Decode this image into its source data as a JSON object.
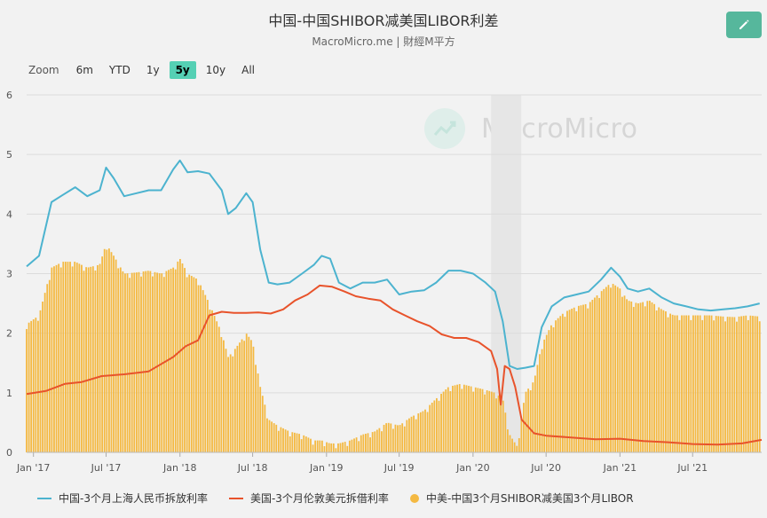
{
  "header": {
    "title": "中国-中国SHIBOR减美国LIBOR利差",
    "subtitle": "MacroMicro.me | 財經M平方",
    "edit_icon": "pencil-icon"
  },
  "watermark": "MacroMicro",
  "zoom": {
    "label": "Zoom",
    "options": [
      "6m",
      "YTD",
      "1y",
      "5y",
      "10y",
      "All"
    ],
    "selected": "5y"
  },
  "legend": [
    {
      "label": "中国-3个月上海人民币拆放利率",
      "color": "#4cb3cf",
      "type": "line"
    },
    {
      "label": "美国-3个月伦敦美元拆借利率",
      "color": "#e8532b",
      "type": "line"
    },
    {
      "label": "中美-中国3个月SHIBOR减美国3个月LIBOR",
      "color": "#f4b942",
      "type": "column"
    }
  ],
  "chart_data": {
    "type": "line",
    "x_tick_labels": [
      "Jan '17",
      "Jul '17",
      "Jan '18",
      "Jul '18",
      "Jan '19",
      "Jul '19",
      "Jan '20",
      "Jul '20",
      "Jan '21",
      "Jul '21"
    ],
    "y_tick_labels": [
      "0",
      "1",
      "2",
      "3",
      "4",
      "5",
      "6"
    ],
    "ylim": [
      0,
      6
    ],
    "xlim": [
      "2016-12-15",
      "2021-12-20"
    ],
    "shaded_band": {
      "from": "2020-02-15",
      "to": "2020-04-30",
      "color": "#e6e6e6"
    },
    "grid": true,
    "series": [
      {
        "name": "中国-3个月上海人民币拆放利率",
        "type": "line",
        "color": "#4cb3cf",
        "x": [
          "2016-12-15",
          "2017-01-15",
          "2017-02-15",
          "2017-03-15",
          "2017-04-15",
          "2017-05-15",
          "2017-06-15",
          "2017-07-01",
          "2017-07-20",
          "2017-08-15",
          "2017-09-15",
          "2017-10-15",
          "2017-11-15",
          "2017-12-15",
          "2018-01-01",
          "2018-01-20",
          "2018-02-15",
          "2018-03-15",
          "2018-04-15",
          "2018-05-01",
          "2018-05-20",
          "2018-06-15",
          "2018-07-01",
          "2018-07-20",
          "2018-08-10",
          "2018-09-01",
          "2018-10-01",
          "2018-11-01",
          "2018-12-01",
          "2018-12-20",
          "2019-01-10",
          "2019-02-01",
          "2019-03-01",
          "2019-04-01",
          "2019-05-01",
          "2019-06-01",
          "2019-07-01",
          "2019-08-01",
          "2019-09-01",
          "2019-10-01",
          "2019-11-01",
          "2019-12-01",
          "2020-01-01",
          "2020-02-01",
          "2020-02-25",
          "2020-03-15",
          "2020-04-01",
          "2020-04-20",
          "2020-05-10",
          "2020-06-01",
          "2020-06-20",
          "2020-07-15",
          "2020-08-15",
          "2020-09-15",
          "2020-10-15",
          "2020-11-15",
          "2020-12-10",
          "2021-01-01",
          "2021-01-20",
          "2021-02-15",
          "2021-03-15",
          "2021-04-15",
          "2021-05-15",
          "2021-06-15",
          "2021-07-15",
          "2021-08-15",
          "2021-09-15",
          "2021-10-15",
          "2021-11-15",
          "2021-12-15"
        ],
        "y": [
          3.12,
          3.3,
          4.2,
          4.32,
          4.45,
          4.3,
          4.4,
          4.78,
          4.6,
          4.3,
          4.35,
          4.4,
          4.4,
          4.75,
          4.9,
          4.7,
          4.72,
          4.68,
          4.4,
          4.0,
          4.1,
          4.35,
          4.2,
          3.4,
          2.85,
          2.82,
          2.85,
          3.0,
          3.15,
          3.3,
          3.25,
          2.85,
          2.75,
          2.85,
          2.85,
          2.9,
          2.65,
          2.7,
          2.72,
          2.85,
          3.05,
          3.05,
          3.0,
          2.85,
          2.7,
          2.2,
          1.45,
          1.4,
          1.42,
          1.45,
          2.1,
          2.45,
          2.6,
          2.65,
          2.7,
          2.9,
          3.1,
          2.95,
          2.75,
          2.7,
          2.75,
          2.6,
          2.5,
          2.45,
          2.4,
          2.38,
          2.4,
          2.42,
          2.45,
          2.5
        ]
      },
      {
        "name": "美国-3个月伦敦美元拆借利率",
        "type": "line",
        "color": "#e8532b",
        "x": [
          "2016-12-15",
          "2017-02-01",
          "2017-03-20",
          "2017-05-01",
          "2017-06-20",
          "2017-08-15",
          "2017-10-15",
          "2017-12-15",
          "2018-01-15",
          "2018-02-15",
          "2018-03-15",
          "2018-04-15",
          "2018-05-15",
          "2018-06-15",
          "2018-07-15",
          "2018-08-15",
          "2018-09-15",
          "2018-10-15",
          "2018-11-15",
          "2018-12-15",
          "2019-01-15",
          "2019-02-15",
          "2019-03-15",
          "2019-04-15",
          "2019-05-15",
          "2019-06-15",
          "2019-07-15",
          "2019-08-15",
          "2019-09-15",
          "2019-10-15",
          "2019-11-15",
          "2019-12-15",
          "2020-01-15",
          "2020-02-15",
          "2020-03-01",
          "2020-03-10",
          "2020-03-20",
          "2020-04-01",
          "2020-04-15",
          "2020-05-01",
          "2020-06-01",
          "2020-07-01",
          "2020-09-01",
          "2020-11-01",
          "2021-01-01",
          "2021-03-01",
          "2021-05-01",
          "2021-07-01",
          "2021-09-01",
          "2021-11-01",
          "2021-12-20"
        ],
        "y": [
          0.98,
          1.03,
          1.15,
          1.18,
          1.28,
          1.31,
          1.36,
          1.6,
          1.78,
          1.88,
          2.3,
          2.36,
          2.34,
          2.34,
          2.35,
          2.33,
          2.4,
          2.55,
          2.65,
          2.8,
          2.78,
          2.7,
          2.62,
          2.58,
          2.55,
          2.4,
          2.3,
          2.2,
          2.12,
          1.98,
          1.92,
          1.92,
          1.85,
          1.7,
          1.4,
          0.8,
          1.45,
          1.4,
          1.1,
          0.55,
          0.32,
          0.28,
          0.25,
          0.22,
          0.23,
          0.19,
          0.17,
          0.14,
          0.13,
          0.15,
          0.21
        ]
      },
      {
        "name": "中美-中国3个月SHIBOR减美国3个月LIBOR",
        "type": "column",
        "color": "#f4b942",
        "x": [
          "2016-12-15",
          "2017-01-15",
          "2017-02-15",
          "2017-03-15",
          "2017-04-15",
          "2017-05-15",
          "2017-06-15",
          "2017-07-01",
          "2017-07-20",
          "2017-08-15",
          "2017-09-15",
          "2017-10-15",
          "2017-11-15",
          "2017-12-15",
          "2018-01-01",
          "2018-01-20",
          "2018-02-15",
          "2018-03-15",
          "2018-04-15",
          "2018-05-01",
          "2018-05-20",
          "2018-06-15",
          "2018-07-01",
          "2018-07-20",
          "2018-08-10",
          "2018-09-01",
          "2018-10-01",
          "2018-11-01",
          "2018-12-01",
          "2018-12-20",
          "2019-01-10",
          "2019-02-01",
          "2019-03-01",
          "2019-04-01",
          "2019-05-01",
          "2019-06-01",
          "2019-07-01",
          "2019-08-01",
          "2019-09-01",
          "2019-10-01",
          "2019-11-01",
          "2019-12-01",
          "2020-01-01",
          "2020-02-01",
          "2020-02-25",
          "2020-03-15",
          "2020-04-01",
          "2020-04-20",
          "2020-05-10",
          "2020-06-01",
          "2020-06-20",
          "2020-07-15",
          "2020-08-15",
          "2020-09-15",
          "2020-10-15",
          "2020-11-15",
          "2020-12-10",
          "2021-01-01",
          "2021-01-20",
          "2021-02-15",
          "2021-03-15",
          "2021-04-15",
          "2021-05-15",
          "2021-06-15",
          "2021-07-15",
          "2021-08-15",
          "2021-09-15",
          "2021-10-15",
          "2021-11-15",
          "2021-12-15"
        ],
        "y": [
          2.15,
          2.3,
          3.1,
          3.2,
          3.2,
          3.1,
          3.15,
          3.5,
          3.3,
          3.0,
          3.02,
          3.05,
          3.0,
          3.1,
          3.25,
          3.0,
          2.9,
          2.5,
          2.0,
          1.6,
          1.75,
          2.0,
          1.85,
          1.1,
          0.55,
          0.45,
          0.35,
          0.3,
          0.2,
          0.2,
          0.15,
          0.15,
          0.2,
          0.3,
          0.35,
          0.5,
          0.45,
          0.6,
          0.7,
          0.9,
          1.1,
          1.15,
          1.1,
          1.05,
          1.0,
          0.9,
          0.3,
          0.1,
          1.0,
          1.2,
          1.8,
          2.15,
          2.35,
          2.45,
          2.5,
          2.7,
          2.85,
          2.75,
          2.55,
          2.5,
          2.55,
          2.4,
          2.3,
          2.3,
          2.3,
          2.3,
          2.28,
          2.27,
          2.3,
          2.28
        ]
      }
    ]
  }
}
